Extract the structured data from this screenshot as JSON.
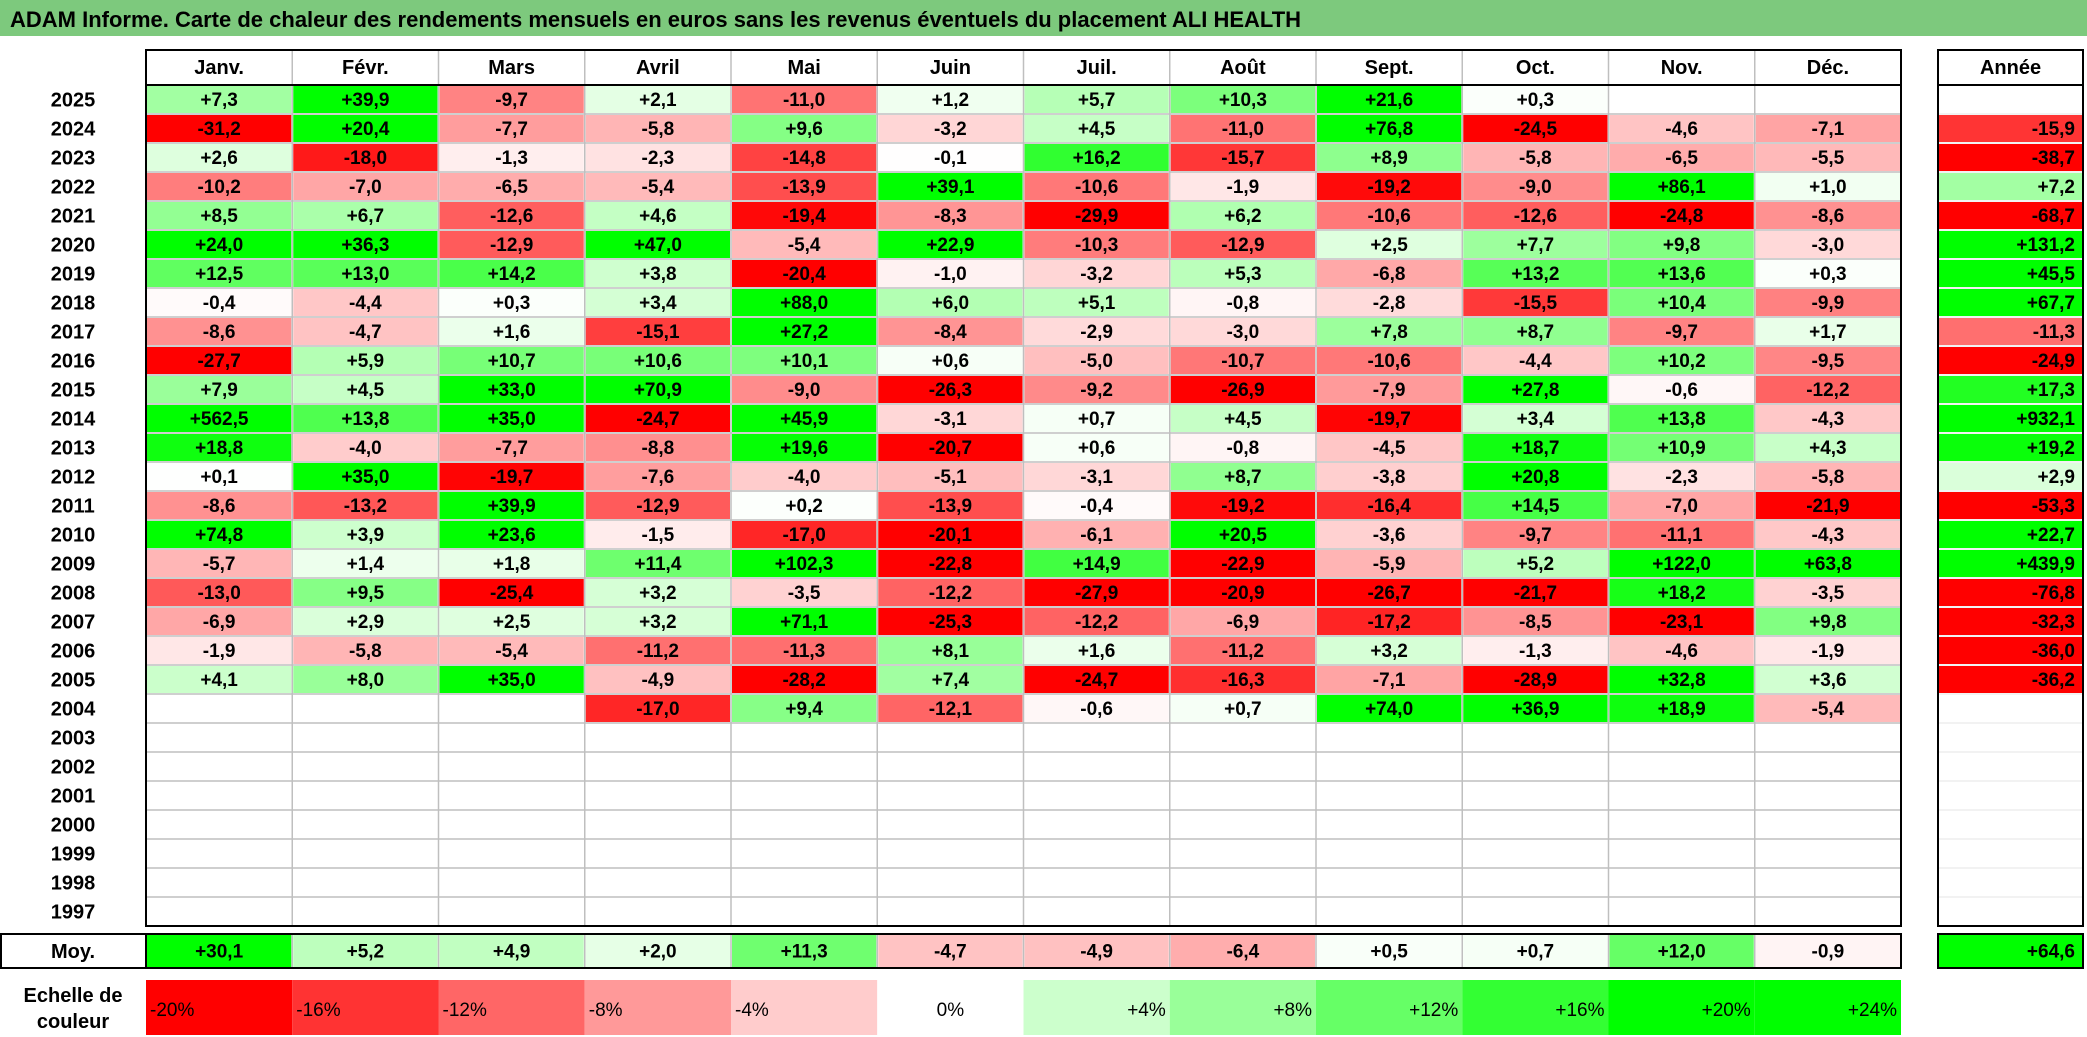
{
  "title": "ADAM Informe. Carte de chaleur des rendements mensuels en euros sans les revenus éventuels du placement ALI HEALTH",
  "chart_data": {
    "type": "heatmap",
    "title": "ADAM Informe. Carte de chaleur des rendements mensuels en euros sans les revenus éventuels du placement ALI HEALTH",
    "months": [
      "Janv.",
      "Févr.",
      "Mars",
      "Avril",
      "Mai",
      "Juin",
      "Juil.",
      "Août",
      "Sept.",
      "Oct.",
      "Nov.",
      "Déc."
    ],
    "annual_header": "Année",
    "avg_label": "Moy.",
    "rows": [
      {
        "year": "2025",
        "values": [
          "+7,3",
          "+39,9",
          "-9,7",
          "+2,1",
          "-11,0",
          "+1,2",
          "+5,7",
          "+10,3",
          "+21,6",
          "+0,3",
          "",
          ""
        ],
        "annual": ""
      },
      {
        "year": "2024",
        "values": [
          "-31,2",
          "+20,4",
          "-7,7",
          "-5,8",
          "+9,6",
          "-3,2",
          "+4,5",
          "-11,0",
          "+76,8",
          "-24,5",
          "-4,6",
          "-7,1"
        ],
        "annual": "-15,9"
      },
      {
        "year": "2023",
        "values": [
          "+2,6",
          "-18,0",
          "-1,3",
          "-2,3",
          "-14,8",
          "-0,1",
          "+16,2",
          "-15,7",
          "+8,9",
          "-5,8",
          "-6,5",
          "-5,5"
        ],
        "annual": "-38,7"
      },
      {
        "year": "2022",
        "values": [
          "-10,2",
          "-7,0",
          "-6,5",
          "-5,4",
          "-13,9",
          "+39,1",
          "-10,6",
          "-1,9",
          "-19,2",
          "-9,0",
          "+86,1",
          "+1,0"
        ],
        "annual": "+7,2"
      },
      {
        "year": "2021",
        "values": [
          "+8,5",
          "+6,7",
          "-12,6",
          "+4,6",
          "-19,4",
          "-8,3",
          "-29,9",
          "+6,2",
          "-10,6",
          "-12,6",
          "-24,8",
          "-8,6"
        ],
        "annual": "-68,7"
      },
      {
        "year": "2020",
        "values": [
          "+24,0",
          "+36,3",
          "-12,9",
          "+47,0",
          "-5,4",
          "+22,9",
          "-10,3",
          "-12,9",
          "+2,5",
          "+7,7",
          "+9,8",
          "-3,0"
        ],
        "annual": "+131,2"
      },
      {
        "year": "2019",
        "values": [
          "+12,5",
          "+13,0",
          "+14,2",
          "+3,8",
          "-20,4",
          "-1,0",
          "-3,2",
          "+5,3",
          "-6,8",
          "+13,2",
          "+13,6",
          "+0,3"
        ],
        "annual": "+45,5"
      },
      {
        "year": "2018",
        "values": [
          "-0,4",
          "-4,4",
          "+0,3",
          "+3,4",
          "+88,0",
          "+6,0",
          "+5,1",
          "-0,8",
          "-2,8",
          "-15,5",
          "+10,4",
          "-9,9"
        ],
        "annual": "+67,7"
      },
      {
        "year": "2017",
        "values": [
          "-8,6",
          "-4,7",
          "+1,6",
          "-15,1",
          "+27,2",
          "-8,4",
          "-2,9",
          "-3,0",
          "+7,8",
          "+8,7",
          "-9,7",
          "+1,7"
        ],
        "annual": "-11,3"
      },
      {
        "year": "2016",
        "values": [
          "-27,7",
          "+5,9",
          "+10,7",
          "+10,6",
          "+10,1",
          "+0,6",
          "-5,0",
          "-10,7",
          "-10,6",
          "-4,4",
          "+10,2",
          "-9,5"
        ],
        "annual": "-24,9"
      },
      {
        "year": "2015",
        "values": [
          "+7,9",
          "+4,5",
          "+33,0",
          "+70,9",
          "-9,0",
          "-26,3",
          "-9,2",
          "-26,9",
          "-7,9",
          "+27,8",
          "-0,6",
          "-12,2"
        ],
        "annual": "+17,3"
      },
      {
        "year": "2014",
        "values": [
          "+562,5",
          "+13,8",
          "+35,0",
          "-24,7",
          "+45,9",
          "-3,1",
          "+0,7",
          "+4,5",
          "-19,7",
          "+3,4",
          "+13,8",
          "-4,3"
        ],
        "annual": "+932,1"
      },
      {
        "year": "2013",
        "values": [
          "+18,8",
          "-4,0",
          "-7,7",
          "-8,8",
          "+19,6",
          "-20,7",
          "+0,6",
          "-0,8",
          "-4,5",
          "+18,7",
          "+10,9",
          "+4,3"
        ],
        "annual": "+19,2"
      },
      {
        "year": "2012",
        "values": [
          "+0,1",
          "+35,0",
          "-19,7",
          "-7,6",
          "-4,0",
          "-5,1",
          "-3,1",
          "+8,7",
          "-3,8",
          "+20,8",
          "-2,3",
          "-5,8"
        ],
        "annual": "+2,9"
      },
      {
        "year": "2011",
        "values": [
          "-8,6",
          "-13,2",
          "+39,9",
          "-12,9",
          "+0,2",
          "-13,9",
          "-0,4",
          "-19,2",
          "-16,4",
          "+14,5",
          "-7,0",
          "-21,9"
        ],
        "annual": "-53,3"
      },
      {
        "year": "2010",
        "values": [
          "+74,8",
          "+3,9",
          "+23,6",
          "-1,5",
          "-17,0",
          "-20,1",
          "-6,1",
          "+20,5",
          "-3,6",
          "-9,7",
          "-11,1",
          "-4,3"
        ],
        "annual": "+22,7"
      },
      {
        "year": "2009",
        "values": [
          "-5,7",
          "+1,4",
          "+1,8",
          "+11,4",
          "+102,3",
          "-22,8",
          "+14,9",
          "-22,9",
          "-5,9",
          "+5,2",
          "+122,0",
          "+63,8"
        ],
        "annual": "+439,9"
      },
      {
        "year": "2008",
        "values": [
          "-13,0",
          "+9,5",
          "-25,4",
          "+3,2",
          "-3,5",
          "-12,2",
          "-27,9",
          "-20,9",
          "-26,7",
          "-21,7",
          "+18,2",
          "-3,5"
        ],
        "annual": "-76,8"
      },
      {
        "year": "2007",
        "values": [
          "-6,9",
          "+2,9",
          "+2,5",
          "+3,2",
          "+71,1",
          "-25,3",
          "-12,2",
          "-6,9",
          "-17,2",
          "-8,5",
          "-23,1",
          "+9,8"
        ],
        "annual": "-32,3"
      },
      {
        "year": "2006",
        "values": [
          "-1,9",
          "-5,8",
          "-5,4",
          "-11,2",
          "-11,3",
          "+8,1",
          "+1,6",
          "-11,2",
          "+3,2",
          "-1,3",
          "-4,6",
          "-1,9"
        ],
        "annual": "-36,0"
      },
      {
        "year": "2005",
        "values": [
          "+4,1",
          "+8,0",
          "+35,0",
          "-4,9",
          "-28,2",
          "+7,4",
          "-24,7",
          "-16,3",
          "-7,1",
          "-28,9",
          "+32,8",
          "+3,6"
        ],
        "annual": "-36,2"
      },
      {
        "year": "2004",
        "values": [
          "",
          "",
          "",
          "-17,0",
          "+9,4",
          "-12,1",
          "-0,6",
          "+0,7",
          "+74,0",
          "+36,9",
          "+18,9",
          "-5,4"
        ],
        "annual": ""
      },
      {
        "year": "2003",
        "values": [
          "",
          "",
          "",
          "",
          "",
          "",
          "",
          "",
          "",
          "",
          "",
          ""
        ],
        "annual": ""
      },
      {
        "year": "2002",
        "values": [
          "",
          "",
          "",
          "",
          "",
          "",
          "",
          "",
          "",
          "",
          "",
          ""
        ],
        "annual": ""
      },
      {
        "year": "2001",
        "values": [
          "",
          "",
          "",
          "",
          "",
          "",
          "",
          "",
          "",
          "",
          "",
          ""
        ],
        "annual": ""
      },
      {
        "year": "2000",
        "values": [
          "",
          "",
          "",
          "",
          "",
          "",
          "",
          "",
          "",
          "",
          "",
          ""
        ],
        "annual": ""
      },
      {
        "year": "1999",
        "values": [
          "",
          "",
          "",
          "",
          "",
          "",
          "",
          "",
          "",
          "",
          "",
          ""
        ],
        "annual": ""
      },
      {
        "year": "1998",
        "values": [
          "",
          "",
          "",
          "",
          "",
          "",
          "",
          "",
          "",
          "",
          "",
          ""
        ],
        "annual": ""
      },
      {
        "year": "1997",
        "values": [
          "",
          "",
          "",
          "",
          "",
          "",
          "",
          "",
          "",
          "",
          "",
          ""
        ],
        "annual": ""
      }
    ],
    "averages": [
      "+30,1",
      "+5,2",
      "+4,9",
      "+2,0",
      "+11,3",
      "-4,7",
      "-4,9",
      "-6,4",
      "+0,5",
      "+0,7",
      "+12,0",
      "-0,9"
    ],
    "avg_annual": "+64,6",
    "scale_label_line1": "Echelle de",
    "scale_label_line2": "couleur",
    "scale": [
      "-20%",
      "-16%",
      "-12%",
      "-8%",
      "-4%",
      "0%",
      "+4%",
      "+8%",
      "+12%",
      "+16%",
      "+20%",
      "+24%"
    ],
    "scale_colors": [
      "#ff0000",
      "#ff3333",
      "#ff6666",
      "#ff9999",
      "#ffcccc",
      "#ffffff",
      "#ccffcc",
      "#99ff99",
      "#66ff66",
      "#33ff33",
      "#00ff00",
      "#00ff00"
    ]
  }
}
